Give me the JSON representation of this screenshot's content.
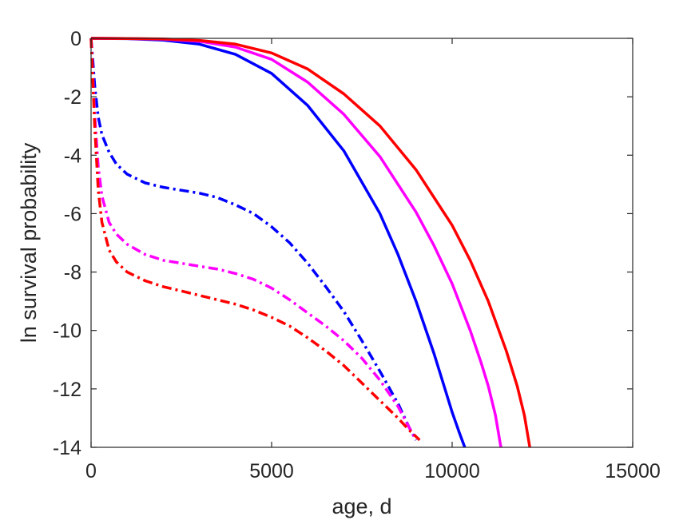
{
  "chart_data": {
    "type": "line",
    "xlabel": "age, d",
    "ylabel": "ln survival probability",
    "xlim": [
      0,
      15000
    ],
    "ylim": [
      -14,
      0
    ],
    "xticks": [
      0,
      5000,
      10000,
      15000
    ],
    "yticks": [
      0,
      -2,
      -4,
      -6,
      -8,
      -10,
      -12,
      -14
    ],
    "xtick_labels": [
      "0",
      "5000",
      "10000",
      "15000"
    ],
    "ytick_labels": [
      "0",
      "-2",
      "-4",
      "-6",
      "-8",
      "-10",
      "-12",
      "-14"
    ],
    "grid": false,
    "box": true,
    "series": [
      {
        "color": "#0000ff",
        "style": "solid",
        "x": [
          0,
          1000,
          2000,
          3000,
          4000,
          5000,
          6000,
          7000,
          8000,
          8500,
          9000,
          9500,
          9800,
          10000,
          10200,
          10350
        ],
        "y": [
          0,
          -0.01,
          -0.06,
          -0.2,
          -0.55,
          -1.2,
          -2.3,
          -3.85,
          -6.0,
          -7.4,
          -9.0,
          -10.8,
          -12.0,
          -12.8,
          -13.5,
          -14.0
        ]
      },
      {
        "color": "#ff00ff",
        "style": "solid",
        "x": [
          0,
          1000,
          2000,
          3000,
          4000,
          5000,
          6000,
          7000,
          8000,
          9000,
          9500,
          10000,
          10500,
          10800,
          11000,
          11200,
          11350
        ],
        "y": [
          0,
          -0.005,
          -0.03,
          -0.1,
          -0.3,
          -0.72,
          -1.5,
          -2.6,
          -4.05,
          -5.95,
          -7.1,
          -8.4,
          -10.0,
          -11.1,
          -11.9,
          -12.9,
          -14.0
        ]
      },
      {
        "color": "#ff0000",
        "style": "solid",
        "x": [
          0,
          1000,
          2000,
          3000,
          4000,
          5000,
          6000,
          7000,
          8000,
          9000,
          10000,
          10500,
          11000,
          11500,
          11800,
          12000,
          12150
        ],
        "y": [
          0,
          -0.005,
          -0.02,
          -0.07,
          -0.2,
          -0.5,
          -1.05,
          -1.9,
          -3.0,
          -4.5,
          -6.4,
          -7.6,
          -9.0,
          -10.7,
          -11.9,
          -12.9,
          -14.0
        ]
      },
      {
        "color": "#0000ff",
        "style": "dashdot",
        "x": [
          0,
          50,
          100,
          200,
          300,
          500,
          700,
          1000,
          1500,
          2000,
          2500,
          3000,
          3500,
          4000,
          4500,
          5000,
          5500,
          6000,
          6500,
          7000,
          7500,
          8000,
          8500,
          8800,
          9000
        ],
        "y": [
          0,
          -0.8,
          -1.6,
          -2.7,
          -3.3,
          -3.9,
          -4.3,
          -4.65,
          -4.95,
          -5.1,
          -5.2,
          -5.3,
          -5.45,
          -5.7,
          -6.0,
          -6.45,
          -7.0,
          -7.7,
          -8.5,
          -9.35,
          -10.35,
          -11.4,
          -12.5,
          -13.3,
          -13.75
        ]
      },
      {
        "color": "#ff00ff",
        "style": "dashdot",
        "x": [
          0,
          50,
          100,
          200,
          300,
          500,
          700,
          1000,
          1500,
          2000,
          2500,
          3000,
          3500,
          4000,
          4500,
          5000,
          5500,
          6000,
          6500,
          7000,
          7500,
          8000,
          8500,
          8800,
          9000
        ],
        "y": [
          0,
          -1.3,
          -2.6,
          -4.4,
          -5.4,
          -6.3,
          -6.7,
          -7.05,
          -7.4,
          -7.6,
          -7.7,
          -7.8,
          -7.9,
          -8.05,
          -8.25,
          -8.55,
          -8.95,
          -9.4,
          -9.85,
          -10.35,
          -10.95,
          -11.7,
          -12.6,
          -13.3,
          -13.75
        ]
      },
      {
        "color": "#ff0000",
        "style": "dashdot",
        "x": [
          0,
          50,
          100,
          200,
          300,
          500,
          700,
          1000,
          1500,
          2000,
          2500,
          3000,
          3500,
          4000,
          4500,
          5000,
          5500,
          6000,
          6500,
          7000,
          7500,
          8000,
          8500,
          8800,
          9100
        ],
        "y": [
          0,
          -1.5,
          -3.0,
          -5.2,
          -6.3,
          -7.25,
          -7.65,
          -8.0,
          -8.3,
          -8.5,
          -8.65,
          -8.8,
          -8.95,
          -9.1,
          -9.3,
          -9.55,
          -9.85,
          -10.25,
          -10.7,
          -11.2,
          -11.8,
          -12.4,
          -13.0,
          -13.4,
          -13.75
        ]
      }
    ]
  }
}
